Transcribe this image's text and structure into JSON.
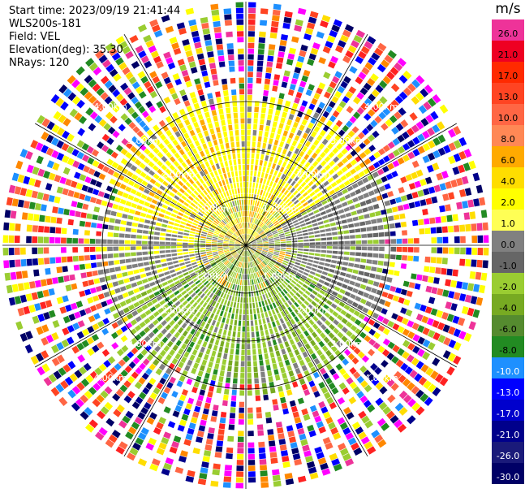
{
  "header": {
    "start_time": "Start time: 2023/09/19 21:41:44",
    "instrument": "WLS200s-181",
    "field": "Field: VEL",
    "elevation": "Elevation(deg): 35.30",
    "nrays": "NRays: 120"
  },
  "colorbar": {
    "unit": "m/s",
    "levels": [
      {
        "label": "26.0",
        "color": "#ee3399"
      },
      {
        "label": "21.0",
        "color": "#ee0022"
      },
      {
        "label": "17.0",
        "color": "#ff2a00"
      },
      {
        "label": "13.0",
        "color": "#ff4422"
      },
      {
        "label": "10.0",
        "color": "#ff6644"
      },
      {
        "label": "8.0",
        "color": "#ff8855"
      },
      {
        "label": "6.0",
        "color": "#ffaa00"
      },
      {
        "label": "4.0",
        "color": "#ffdd00"
      },
      {
        "label": "2.0",
        "color": "#ffff00"
      },
      {
        "label": "1.0",
        "color": "#ffff55"
      },
      {
        "label": "0.0",
        "color": "#808080"
      },
      {
        "label": "-1.0",
        "color": "#666666"
      },
      {
        "label": "-2.0",
        "color": "#9acd32"
      },
      {
        "label": "-4.0",
        "color": "#77aa22"
      },
      {
        "label": "-6.0",
        "color": "#558b2f"
      },
      {
        "label": "-8.0",
        "color": "#228b22"
      },
      {
        "label": "-10.0",
        "color": "#1e90ff"
      },
      {
        "label": "-13.0",
        "color": "#0000ff"
      },
      {
        "label": "-17.0",
        "color": "#0000cd"
      },
      {
        "label": "-21.0",
        "color": "#00008b"
      },
      {
        "label": "-26.0",
        "color": "#1a1a7a"
      },
      {
        "label": "-30.0",
        "color": "#000066"
      }
    ]
  },
  "range_labels": [
    "1.00km",
    "2.00km",
    "3.00km",
    "4.00km"
  ],
  "chart_data": {
    "type": "heatmap",
    "projection": "polar (PPI)",
    "rays": 120,
    "range_rings_km": [
      1.0,
      2.0,
      3.0,
      4.0
    ],
    "colorbar_unit": "m/s",
    "colorbar_ticks": [
      26.0,
      21.0,
      17.0,
      13.0,
      10.0,
      8.0,
      6.0,
      4.0,
      2.0,
      1.0,
      0.0,
      -1.0,
      -2.0,
      -4.0,
      -6.0,
      -8.0,
      -10.0,
      -13.0,
      -17.0,
      -21.0,
      -26.0,
      -30.0
    ]
  }
}
